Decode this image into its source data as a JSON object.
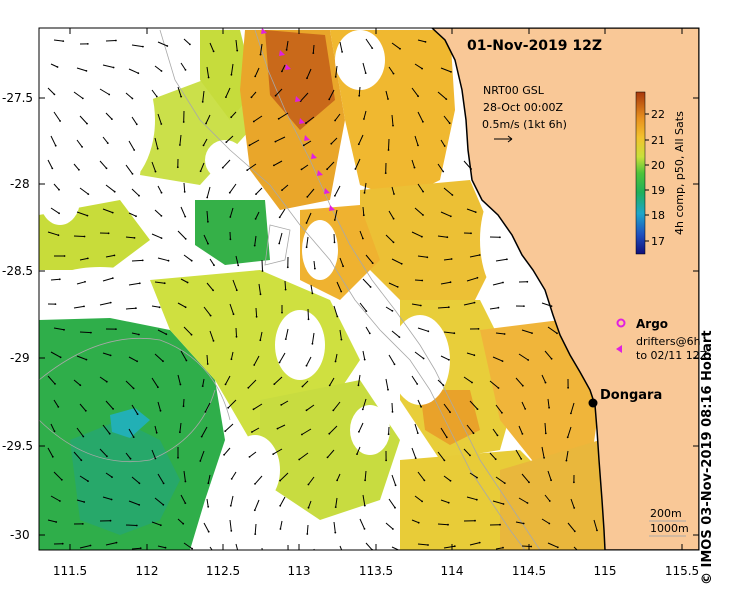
{
  "map": {
    "date_title": "01-Nov-2019 12Z",
    "source_line1": "NRT00 GSL",
    "source_line2": "28-Oct 00:00Z",
    "vector_scale": "0.5m/s (1kt 6h)",
    "colorbar_label": "4h comp, p50, All Sats",
    "colorbar_ticks": [
      "22",
      "21",
      "20",
      "19",
      "18",
      "17"
    ],
    "legend_argo": "Argo",
    "legend_drifters_line1": "drifters@6h",
    "legend_drifters_line2": "to 02/11 12Z",
    "place_name": "Dongara",
    "depth_200": "200m",
    "depth_1000": "1000m",
    "credit": "© IMOS 03-Nov-2019 08:16 Hobart",
    "x_ticks": [
      "111.5",
      "112",
      "112.5",
      "113",
      "113.5",
      "114",
      "114.5",
      "115",
      "115.5"
    ],
    "y_ticks": [
      "-27.5",
      "-28",
      "-28.5",
      "-29",
      "-29.5",
      "-30"
    ]
  },
  "colors": {
    "land": "#f9c897",
    "coast": "#000000",
    "argo": "#e020e0"
  }
}
